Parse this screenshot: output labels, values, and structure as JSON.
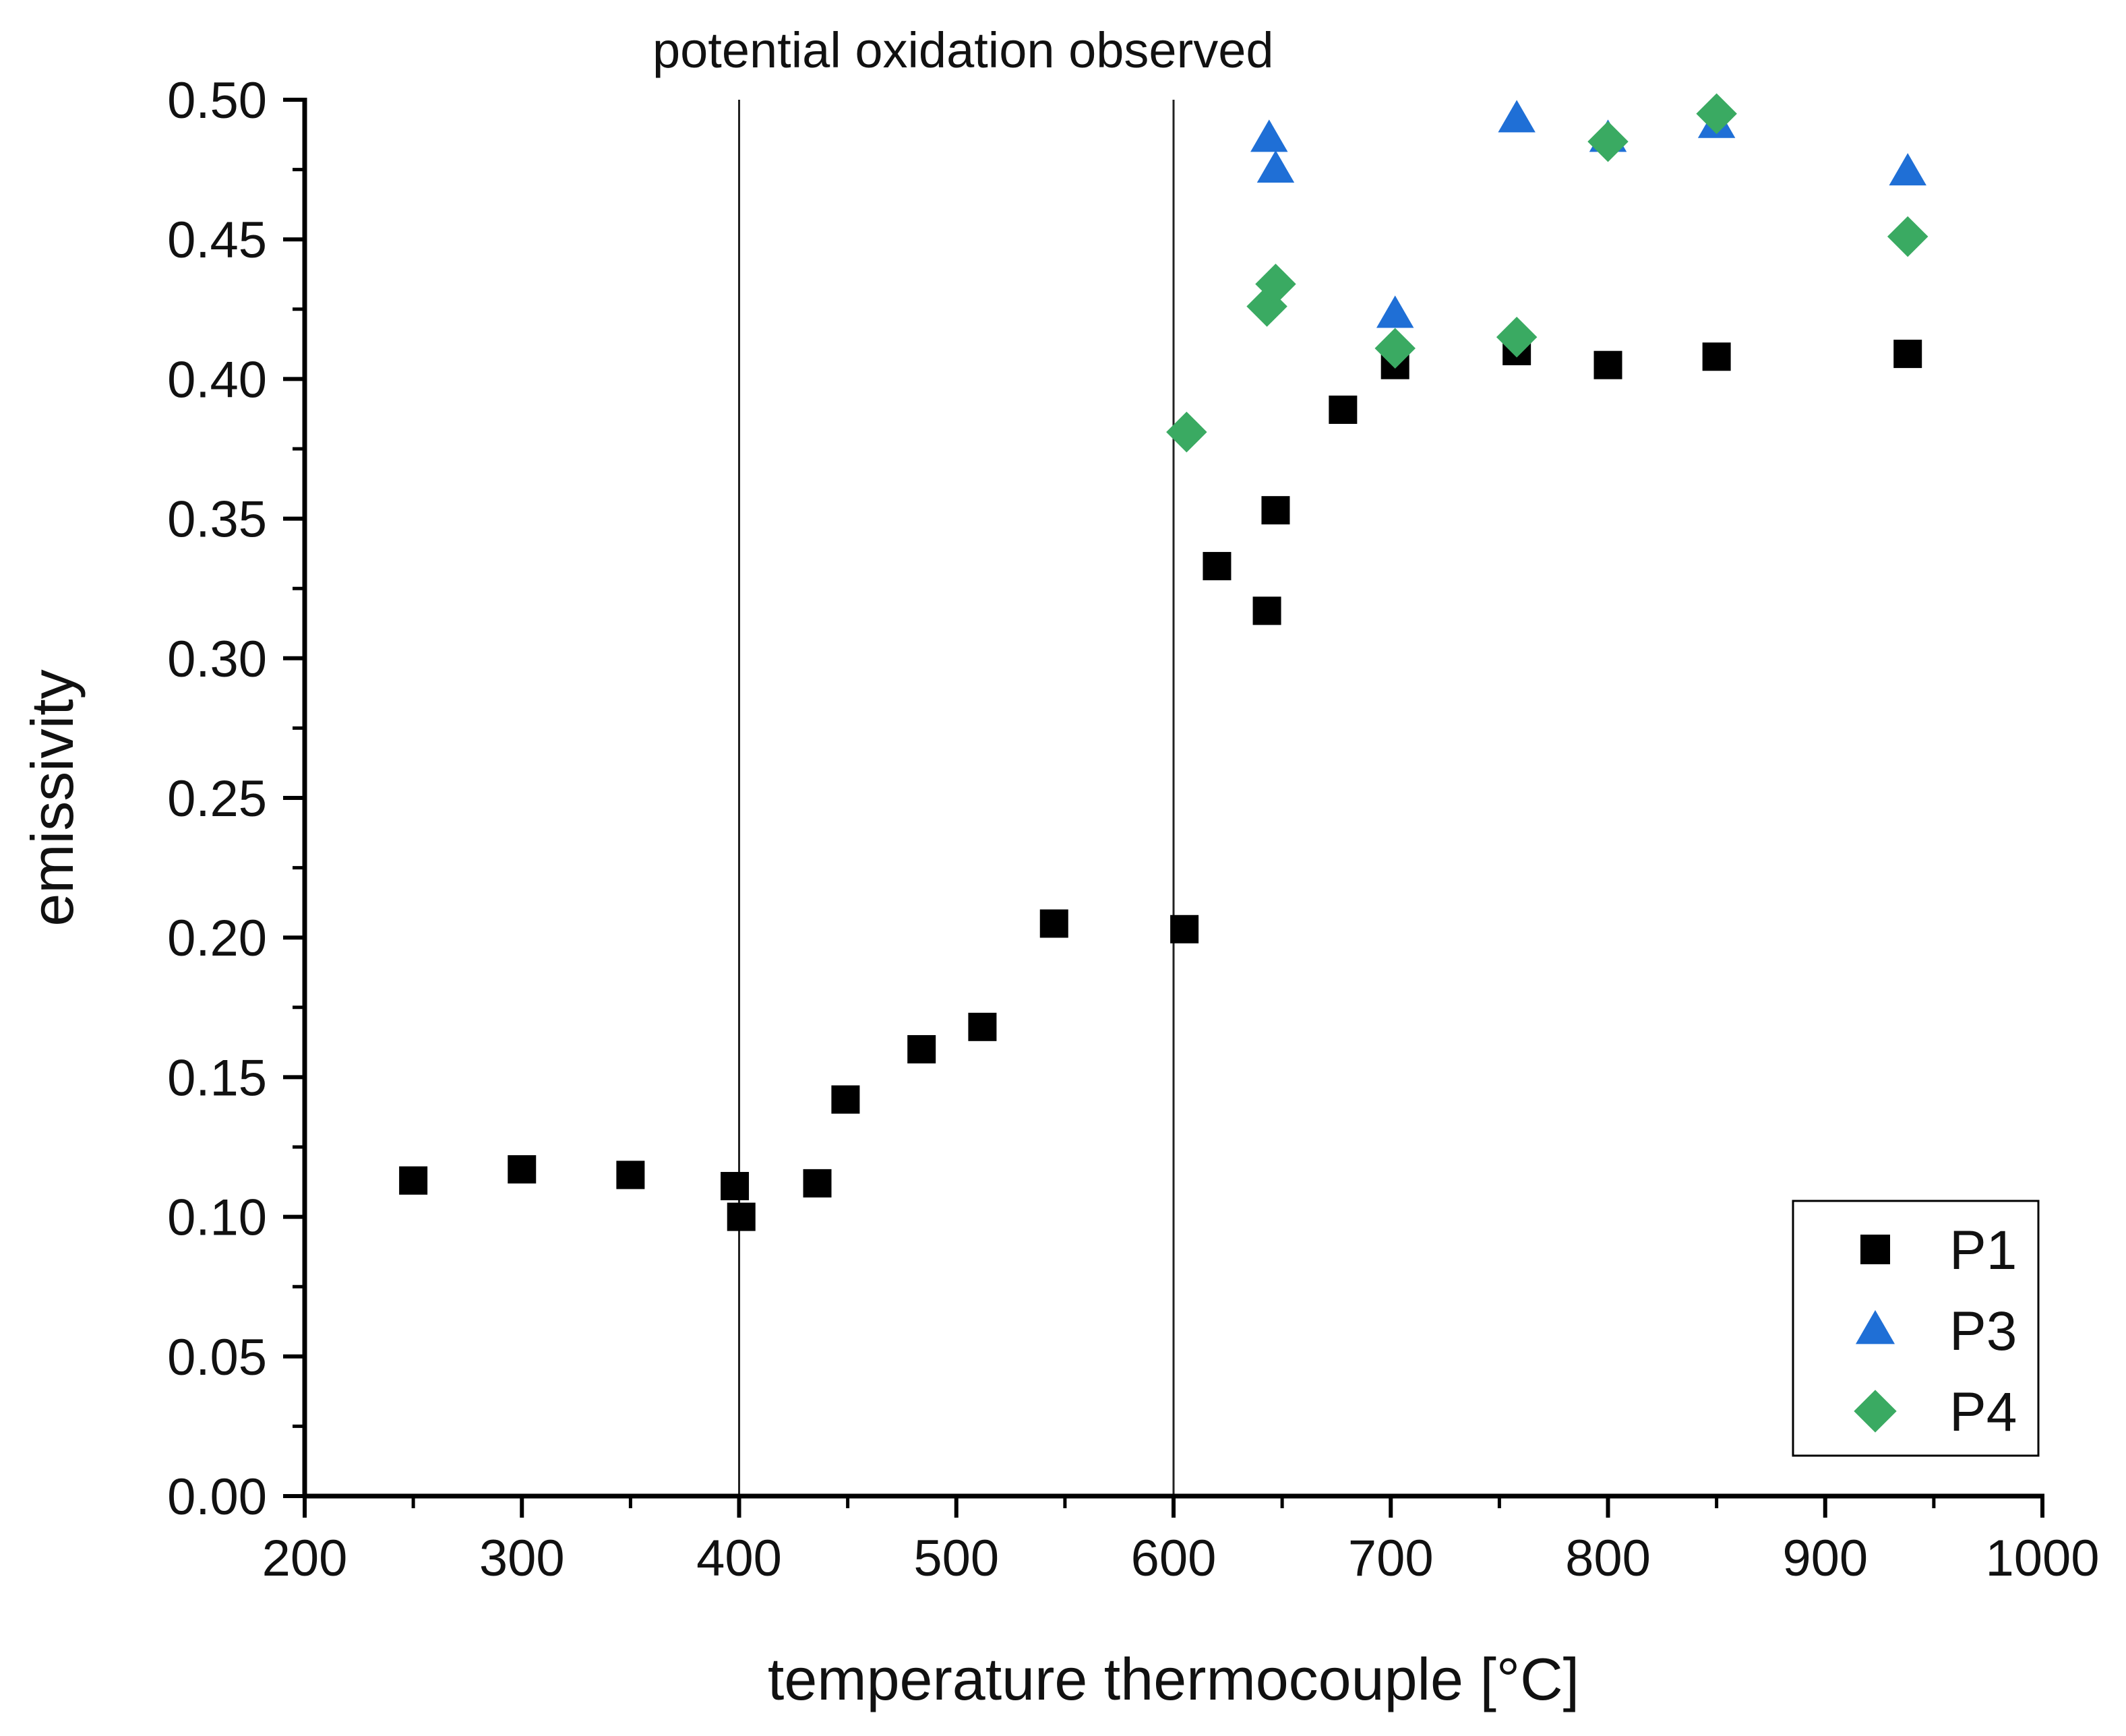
{
  "chart_data": {
    "type": "scatter",
    "title": "",
    "annotation": "potential oxidation observed",
    "xlabel": "temperature thermocouple [°C]",
    "ylabel": "emissivity",
    "xlim": [
      200,
      1000
    ],
    "ylim": [
      0.0,
      0.5
    ],
    "x_ticks": [
      200,
      300,
      400,
      500,
      600,
      700,
      800,
      900,
      1000
    ],
    "x_tick_labels": [
      "200",
      "300",
      "400",
      "500",
      "600",
      "700",
      "800",
      "900",
      "1000"
    ],
    "y_ticks": [
      0.0,
      0.05,
      0.1,
      0.15,
      0.2,
      0.25,
      0.3,
      0.35,
      0.4,
      0.45,
      0.5
    ],
    "y_tick_labels": [
      "0.00",
      "0.05",
      "0.10",
      "0.15",
      "0.20",
      "0.25",
      "0.30",
      "0.35",
      "0.40",
      "0.45",
      "0.50"
    ],
    "reference_lines_x": [
      400,
      600
    ],
    "grid": false,
    "legend_position": "bottom-right",
    "series": [
      {
        "name": "P1",
        "marker": "square",
        "color": "#000000",
        "points": [
          [
            250,
            0.113
          ],
          [
            300,
            0.117
          ],
          [
            350,
            0.115
          ],
          [
            398,
            0.111
          ],
          [
            401,
            0.1
          ],
          [
            436,
            0.112
          ],
          [
            449,
            0.142
          ],
          [
            484,
            0.16
          ],
          [
            512,
            0.168
          ],
          [
            545,
            0.205
          ],
          [
            605,
            0.203
          ],
          [
            620,
            0.333
          ],
          [
            643,
            0.317
          ],
          [
            647,
            0.353
          ],
          [
            678,
            0.389
          ],
          [
            702,
            0.405
          ],
          [
            758,
            0.41
          ],
          [
            800,
            0.405
          ],
          [
            850,
            0.408
          ],
          [
            938,
            0.409
          ]
        ]
      },
      {
        "name": "P3",
        "marker": "triangle",
        "color": "#1f6fd6",
        "points": [
          [
            644,
            0.486
          ],
          [
            647,
            0.475
          ],
          [
            702,
            0.423
          ],
          [
            758,
            0.493
          ],
          [
            800,
            0.486
          ],
          [
            850,
            0.491
          ],
          [
            938,
            0.474
          ]
        ]
      },
      {
        "name": "P4",
        "marker": "diamond",
        "color": "#3aaa62",
        "points": [
          [
            606,
            0.381
          ],
          [
            643,
            0.426
          ],
          [
            647,
            0.434
          ],
          [
            702,
            0.411
          ],
          [
            758,
            0.415
          ],
          [
            800,
            0.485
          ],
          [
            850,
            0.495
          ],
          [
            938,
            0.451
          ]
        ]
      }
    ]
  }
}
